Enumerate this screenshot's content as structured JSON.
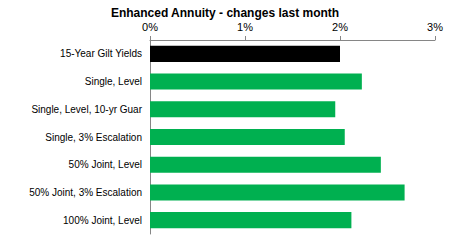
{
  "chart_data": {
    "type": "bar",
    "orientation": "horizontal",
    "title": "Enhanced Annuity - changes last month",
    "categories": [
      "15-Year Gilt Yields",
      "Single, Level",
      "Single, Level, 10-yr Guar",
      "Single, 3% Escalation",
      "50% Joint, Level",
      "50% Joint, 3% Escalation",
      "100% Joint, Level"
    ],
    "values": [
      2.0,
      2.23,
      1.95,
      2.05,
      2.43,
      2.68,
      2.12
    ],
    "colors": [
      "#000000",
      "#00b050",
      "#00b050",
      "#00b050",
      "#00b050",
      "#00b050",
      "#00b050"
    ],
    "xlim": [
      0,
      3
    ],
    "xticks": [
      {
        "value": 0,
        "label": "0%"
      },
      {
        "value": 1,
        "label": "1%"
      },
      {
        "value": 2,
        "label": "2%"
      },
      {
        "value": 3,
        "label": "3%"
      }
    ],
    "grid": false
  }
}
